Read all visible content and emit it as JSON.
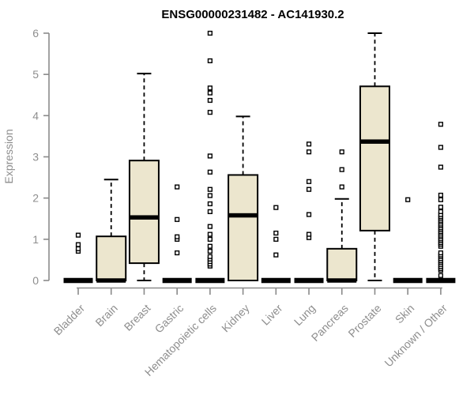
{
  "style": {
    "background": "#ffffff",
    "box_fill": "#ece6ce",
    "box_stroke": "#000000",
    "median_color": "#000000",
    "outlier_fill": "#ffffff",
    "outlier_stroke": "#000000",
    "axis_color": "#8a8a8a",
    "tick_label_color": "#8e8e8e",
    "title_color": "#000000"
  },
  "chart_data": {
    "type": "boxplot",
    "title": "ENSG00000231482 - AC141930.2",
    "ylabel": "Expression",
    "xlabel": "",
    "ylim": [
      0,
      6
    ],
    "yticks": [
      0,
      1,
      2,
      3,
      4,
      5,
      6
    ],
    "grid": false,
    "legend": "none",
    "categories": [
      "Bladder",
      "Brain",
      "Breast",
      "Gastric",
      "Hematopoietic cells",
      "Kidney",
      "Liver",
      "Lung",
      "Pancreas",
      "Prostate",
      "Skin",
      "Unknown / Other"
    ],
    "boxes": [
      {
        "category": "Bladder",
        "whisker_low": 0,
        "q1": 0,
        "median": 0,
        "q3": 0,
        "whisker_high": 0,
        "outliers": [
          0.71,
          0.77,
          0.87,
          1.1
        ]
      },
      {
        "category": "Brain",
        "whisker_low": 0,
        "q1": 0,
        "median": 0,
        "q3": 1.07,
        "whisker_high": 2.45,
        "outliers": []
      },
      {
        "category": "Breast",
        "whisker_low": 0,
        "q1": 0.42,
        "median": 1.53,
        "q3": 2.91,
        "whisker_high": 5.02,
        "outliers": []
      },
      {
        "category": "Gastric",
        "whisker_low": 0,
        "q1": 0,
        "median": 0,
        "q3": 0,
        "whisker_high": 0,
        "outliers": [
          0.67,
          1.0,
          1.06,
          1.48,
          2.27
        ]
      },
      {
        "category": "Hematopoietic cells",
        "whisker_low": 0,
        "q1": 0,
        "median": 0,
        "q3": 0,
        "whisker_high": 0,
        "outliers": [
          0.35,
          0.4,
          0.46,
          0.52,
          0.58,
          0.71,
          0.83,
          1.0,
          1.12,
          1.31,
          1.67,
          1.86,
          2.06,
          2.21,
          2.63,
          3.02,
          4.08,
          4.37,
          4.55,
          4.67,
          5.33,
          6.0
        ]
      },
      {
        "category": "Kidney",
        "whisker_low": 0,
        "q1": 0,
        "median": 1.58,
        "q3": 2.56,
        "whisker_high": 3.98,
        "outliers": []
      },
      {
        "category": "Liver",
        "whisker_low": 0,
        "q1": 0,
        "median": 0,
        "q3": 0,
        "whisker_high": 0,
        "outliers": [
          0.62,
          1.0,
          1.15,
          1.77
        ]
      },
      {
        "category": "Lung",
        "whisker_low": 0,
        "q1": 0,
        "median": 0,
        "q3": 0,
        "whisker_high": 0,
        "outliers": [
          1.04,
          1.12,
          1.6,
          2.21,
          2.4,
          3.12,
          3.31
        ]
      },
      {
        "category": "Pancreas",
        "whisker_low": 0,
        "q1": 0,
        "median": 0,
        "q3": 0.77,
        "whisker_high": 1.98,
        "outliers": [
          2.27,
          2.69,
          3.12
        ]
      },
      {
        "category": "Prostate",
        "whisker_low": 0,
        "q1": 1.21,
        "median": 3.37,
        "q3": 4.71,
        "whisker_high": 6.0,
        "outliers": []
      },
      {
        "category": "Skin",
        "whisker_low": 0,
        "q1": 0,
        "median": 0,
        "q3": 0,
        "whisker_high": 0,
        "outliers": [
          1.96
        ]
      },
      {
        "category": "Unknown / Other",
        "whisker_low": 0,
        "q1": 0,
        "median": 0,
        "q3": 0,
        "whisker_high": 0,
        "outliers": [
          0.12,
          0.25,
          0.29,
          0.34,
          0.39,
          0.44,
          0.48,
          0.53,
          0.58,
          0.62,
          0.67,
          0.83,
          0.88,
          0.92,
          0.97,
          1.01,
          1.06,
          1.1,
          1.15,
          1.19,
          1.24,
          1.28,
          1.33,
          1.37,
          1.42,
          1.46,
          1.51,
          1.55,
          1.6,
          1.67,
          1.78,
          1.96,
          2.07,
          2.75,
          3.23,
          3.79
        ]
      }
    ]
  }
}
